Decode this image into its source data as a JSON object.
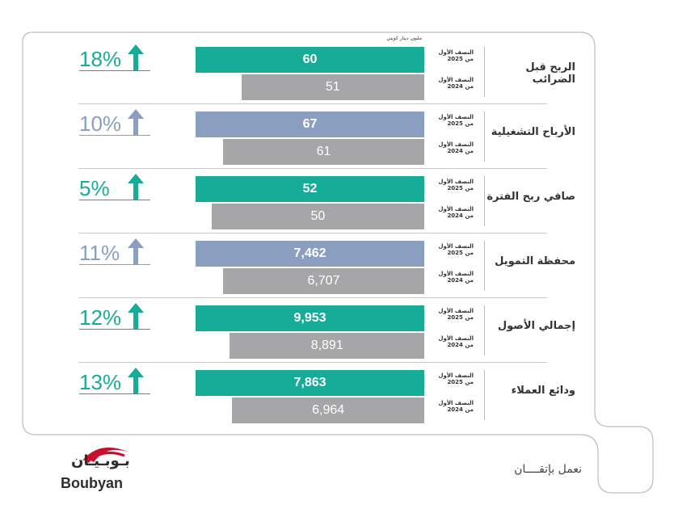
{
  "unit_label": "مليون دينار كويتي",
  "period_current": "النصف الأول\nمن 2025",
  "period_previous": "النصف الأول\nمن 2024",
  "colors": {
    "teal": "#16AC98",
    "blue": "#8A9FC0",
    "gray": "#A6A6A8",
    "frame": "#BDBDBD"
  },
  "slogan": "نعمل بإتقــــان",
  "brand": {
    "arabic": "بـوبـيـان",
    "latin": "Boubyan",
    "logo_icon": "boubyan-arc-logo"
  },
  "chart_data": {
    "type": "bar",
    "orientation": "horizontal",
    "categories": [
      "الربح قبل الضرائب",
      "الأرباح التشغيلية",
      "صافي ربح الفترة",
      "محفظة التمويل",
      "إجمالي الأصول",
      "ودائع العملاء"
    ],
    "series": [
      {
        "name": "النصف الأول من 2025",
        "values": [
          60,
          67,
          52,
          7462,
          9953,
          7863
        ],
        "labels": [
          "60",
          "67",
          "52",
          "7,462",
          "9,953",
          "7,863"
        ]
      },
      {
        "name": "النصف الأول من 2024",
        "values": [
          51,
          61,
          50,
          6707,
          8891,
          6964
        ],
        "labels": [
          "51",
          "61",
          "50",
          "6,707",
          "8,891",
          "6,964"
        ]
      }
    ],
    "growth": [
      "18%",
      "10%",
      "5%",
      "11%",
      "12%",
      "13%"
    ],
    "growth_color": [
      "teal",
      "blue",
      "teal",
      "blue",
      "teal",
      "teal"
    ],
    "growth_icon": "arrow-up-icon",
    "title": "",
    "xlabel": "",
    "ylabel": ""
  }
}
